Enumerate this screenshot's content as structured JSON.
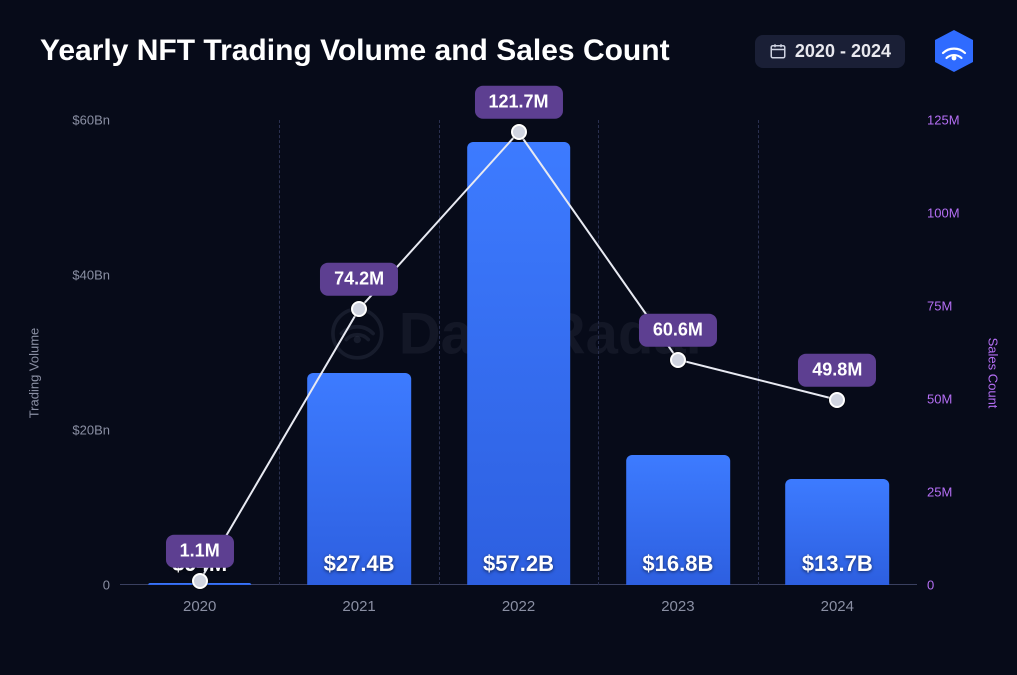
{
  "header": {
    "title": "Yearly NFT Trading Volume and Sales Count",
    "date_range": "2020 - 2024"
  },
  "watermark": "DappRadar",
  "chart": {
    "type": "bar+line",
    "background_color": "#070b19",
    "grid_color": "#2a3050",
    "categories": [
      "2020",
      "2021",
      "2022",
      "2023",
      "2024"
    ],
    "left_axis": {
      "label": "Trading Volume",
      "label_color": "#8a8fa3",
      "min": 0,
      "max": 60,
      "ticks": [
        {
          "value": 0,
          "label": "0"
        },
        {
          "value": 20,
          "label": "$20Bn"
        },
        {
          "value": 40,
          "label": "$40Bn"
        },
        {
          "value": 60,
          "label": "$60Bn"
        }
      ],
      "tick_color": "#8a8fa3"
    },
    "right_axis": {
      "label": "Sales Count",
      "label_color": "#b56ff5",
      "min": 0,
      "max": 125,
      "ticks": [
        {
          "value": 0,
          "label": "0"
        },
        {
          "value": 25,
          "label": "25M"
        },
        {
          "value": 50,
          "label": "50M"
        },
        {
          "value": 75,
          "label": "75M"
        },
        {
          "value": 100,
          "label": "100M"
        },
        {
          "value": 125,
          "label": "125M"
        }
      ],
      "tick_color": "#b56ff5"
    },
    "bars": {
      "color_top": "#3d7bff",
      "color_bottom": "#2d5fe0",
      "width_pct": 13,
      "data": [
        {
          "value": 0.094,
          "label": "$94M"
        },
        {
          "value": 27.4,
          "label": "$27.4B"
        },
        {
          "value": 57.2,
          "label": "$57.2B"
        },
        {
          "value": 16.8,
          "label": "$16.8B"
        },
        {
          "value": 13.7,
          "label": "$13.7B"
        }
      ]
    },
    "line": {
      "stroke": "#e8eaf2",
      "stroke_width": 2,
      "point_fill": "#d0d4e0",
      "point_stroke": "#ffffff",
      "label_bg": "#5d3f91",
      "data": [
        {
          "value": 1.1,
          "label": "1.1M"
        },
        {
          "value": 74.2,
          "label": "74.2M"
        },
        {
          "value": 121.7,
          "label": "121.7M"
        },
        {
          "value": 60.6,
          "label": "60.6M"
        },
        {
          "value": 49.8,
          "label": "49.8M"
        }
      ]
    }
  }
}
